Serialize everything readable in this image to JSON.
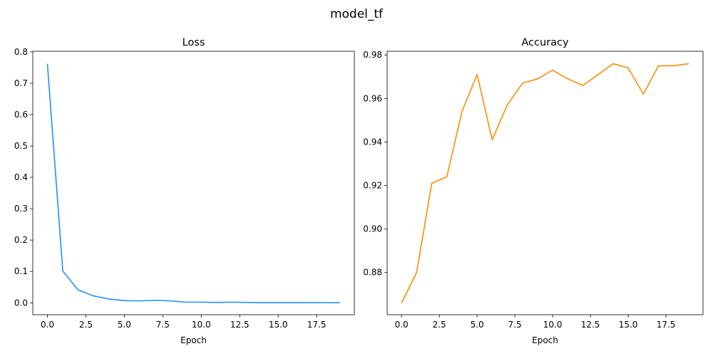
{
  "figure": {
    "suptitle": "model_tf"
  },
  "chart_data": [
    {
      "type": "line",
      "title": "Loss",
      "xlabel": "Epoch",
      "ylabel": "",
      "xlim": [
        -0.95,
        19.95
      ],
      "ylim": [
        -0.038,
        0.802
      ],
      "xticks": [
        0,
        2.5,
        5,
        7.5,
        10,
        12.5,
        15,
        17.5
      ],
      "xtick_labels": [
        "0.0",
        "2.5",
        "5.0",
        "7.5",
        "10.0",
        "12.5",
        "15.0",
        "17.5"
      ],
      "yticks": [
        0,
        0.1,
        0.2,
        0.3,
        0.4,
        0.5,
        0.6,
        0.7,
        0.8
      ],
      "ytick_labels": [
        "0.0",
        "0.1",
        "0.2",
        "0.3",
        "0.4",
        "0.5",
        "0.6",
        "0.7",
        "0.8"
      ],
      "grid": false,
      "series": [
        {
          "color": "#1e90ff",
          "x": [
            0,
            1,
            2,
            3,
            4,
            5,
            6,
            7,
            8,
            9,
            10,
            11,
            12,
            13,
            14,
            15,
            16,
            17,
            18,
            19
          ],
          "y": [
            0.762,
            0.101,
            0.041,
            0.022,
            0.012,
            0.007,
            0.006,
            0.008,
            0.006,
            0.002,
            0.002,
            0.001,
            0.002,
            0.001,
            0.0005,
            0.0005,
            0.0005,
            0.0005,
            0.0003,
            0.0002
          ]
        }
      ]
    },
    {
      "type": "line",
      "title": "Accuracy",
      "xlabel": "Epoch",
      "ylabel": "",
      "xlim": [
        -0.95,
        19.95
      ],
      "ylim": [
        0.8606,
        0.9817
      ],
      "xticks": [
        0,
        2.5,
        5,
        7.5,
        10,
        12.5,
        15,
        17.5
      ],
      "xtick_labels": [
        "0.0",
        "2.5",
        "5.0",
        "7.5",
        "10.0",
        "12.5",
        "15.0",
        "17.5"
      ],
      "yticks": [
        0.88,
        0.9,
        0.92,
        0.94,
        0.96,
        0.98
      ],
      "ytick_labels": [
        "0.88",
        "0.90",
        "0.92",
        "0.94",
        "0.96",
        "0.98"
      ],
      "grid": false,
      "series": [
        {
          "color": "#ff8c00",
          "x": [
            0,
            1,
            2,
            3,
            4,
            5,
            6,
            7,
            8,
            9,
            10,
            11,
            12,
            13,
            14,
            15,
            16,
            17,
            18,
            19
          ],
          "y": [
            0.866,
            0.88,
            0.921,
            0.924,
            0.954,
            0.971,
            0.941,
            0.957,
            0.967,
            0.969,
            0.973,
            0.969,
            0.966,
            0.971,
            0.976,
            0.974,
            0.962,
            0.975,
            0.975,
            0.976
          ]
        }
      ]
    }
  ]
}
